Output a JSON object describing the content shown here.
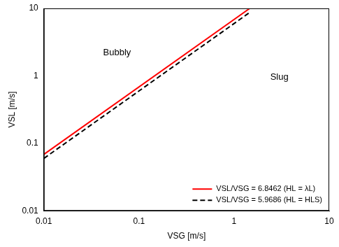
{
  "chart_data": {
    "type": "line",
    "x_label": "VSG [m/s]",
    "y_label": "VSL [m/s]",
    "log": true,
    "grid": false,
    "legend": "lower right",
    "xlim": [
      0.01,
      10
    ],
    "ylim": [
      0.01,
      10
    ],
    "xticks": [
      0.01,
      0.1,
      1,
      10
    ],
    "yticks": [
      0.01,
      0.1,
      1,
      10
    ],
    "series": [
      {
        "name": "VSL/VSG = 6.8462 (HL = λL)",
        "color": "#ff0000",
        "line_style": "solid",
        "marker": "none",
        "x": [
          0.01,
          1.46
        ],
        "values": [
          0.0685,
          10
        ]
      },
      {
        "name": "VSL/VSG = 5.9686 (HL = HLS)",
        "color": "#000000",
        "line_style": "dashed",
        "marker": "none",
        "x": [
          0.01,
          1.5
        ],
        "values": [
          0.0597,
          8.95
        ]
      }
    ],
    "annotations": [
      {
        "text": "Bubbly",
        "x": 0.042,
        "y": 2.2
      },
      {
        "text": "Slug",
        "x": 2.4,
        "y": 0.95
      }
    ]
  }
}
